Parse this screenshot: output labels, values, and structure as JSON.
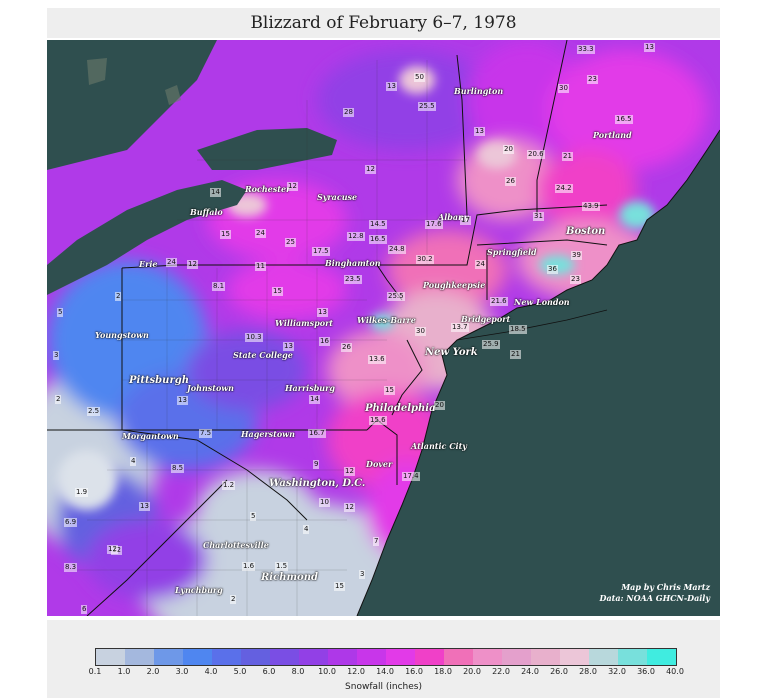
{
  "title": "Blizzard of February 6–7, 1978",
  "credit": [
    "Map by Chris Martz",
    "Data: NOAA GHCN-Daily"
  ],
  "legend": {
    "label": "Snowfall (inches)",
    "ticks": [
      "0.1",
      "1.0",
      "2.0",
      "3.0",
      "4.0",
      "5.0",
      "6.0",
      "8.0",
      "10.0",
      "12.0",
      "14.0",
      "16.0",
      "18.0",
      "20.0",
      "22.0",
      "24.0",
      "26.0",
      "28.0",
      "32.0",
      "36.0",
      "40.0"
    ],
    "colors": [
      "#c8d2e0",
      "#a4b8de",
      "#6e98e8",
      "#4f86f0",
      "#5a70ea",
      "#6460e0",
      "#7a4ee4",
      "#9240e6",
      "#ae38e8",
      "#c836ea",
      "#e23ae8",
      "#f040c8",
      "#f070b8",
      "#ee90c8",
      "#e4a0cc",
      "#e8b0cc",
      "#ecc6d8",
      "#b8d8dc",
      "#78e0dc",
      "#40ece0"
    ]
  },
  "cities": [
    {
      "name": "Burlington",
      "big": false
    },
    {
      "name": "Portland",
      "big": false
    },
    {
      "name": "Rochester",
      "big": false
    },
    {
      "name": "Syracuse",
      "big": false
    },
    {
      "name": "Buffalo",
      "big": false
    },
    {
      "name": "Albany",
      "big": false
    },
    {
      "name": "Boston",
      "big": true
    },
    {
      "name": "Springfield",
      "big": false
    },
    {
      "name": "Erie",
      "big": false
    },
    {
      "name": "Binghamton",
      "big": false
    },
    {
      "name": "Poughkeepsie",
      "big": false
    },
    {
      "name": "New London",
      "big": false
    },
    {
      "name": "Youngstown",
      "big": false
    },
    {
      "name": "Williamsport",
      "big": false
    },
    {
      "name": "Wilkes-Barre",
      "big": false
    },
    {
      "name": "Bridgeport",
      "big": false
    },
    {
      "name": "State College",
      "big": false
    },
    {
      "name": "New York",
      "big": true
    },
    {
      "name": "Pittsburgh",
      "big": true
    },
    {
      "name": "Johnstown",
      "big": false
    },
    {
      "name": "Harrisburg",
      "big": false
    },
    {
      "name": "Philadelphia",
      "big": true
    },
    {
      "name": "Morgantown",
      "big": false
    },
    {
      "name": "Hagerstown",
      "big": false
    },
    {
      "name": "Atlantic City",
      "big": false
    },
    {
      "name": "Dover",
      "big": false
    },
    {
      "name": "Washington, D.C.",
      "big": true
    },
    {
      "name": "Charlottesville",
      "big": false
    },
    {
      "name": "Richmond",
      "big": true
    },
    {
      "name": "Lynchburg",
      "big": false
    }
  ],
  "values": [
    "33.3",
    "13",
    "50",
    "25.5",
    "13",
    "23",
    "30",
    "16.5",
    "28",
    "13",
    "20",
    "20.6",
    "21",
    "26",
    "24.2",
    "43.9",
    "31",
    "39",
    "36",
    "23",
    "24",
    "17.6",
    "17",
    "12",
    "14",
    "12",
    "15",
    "14.5",
    "12.8",
    "16.5",
    "24",
    "25",
    "17.5",
    "24.8",
    "30.2",
    "24",
    "11",
    "12",
    "8.1",
    "15",
    "23.5",
    "25.5",
    "21.6",
    "13.7",
    "18.5",
    "13",
    "10.3",
    "13",
    "16",
    "26",
    "13.6",
    "30",
    "25.9",
    "21",
    "13",
    "2",
    "5",
    "3",
    "2.5",
    "2",
    "4",
    "8.5",
    "13",
    "12",
    "7.5",
    "14",
    "16.7",
    "9",
    "12",
    "15.6",
    "15",
    "20",
    "17.4",
    "10",
    "12",
    "1.9",
    "7",
    "6.9",
    "12",
    "8.3",
    "6",
    "1.6",
    "1.5",
    "15",
    "2",
    "1.2",
    "5",
    "4",
    "3"
  ]
}
